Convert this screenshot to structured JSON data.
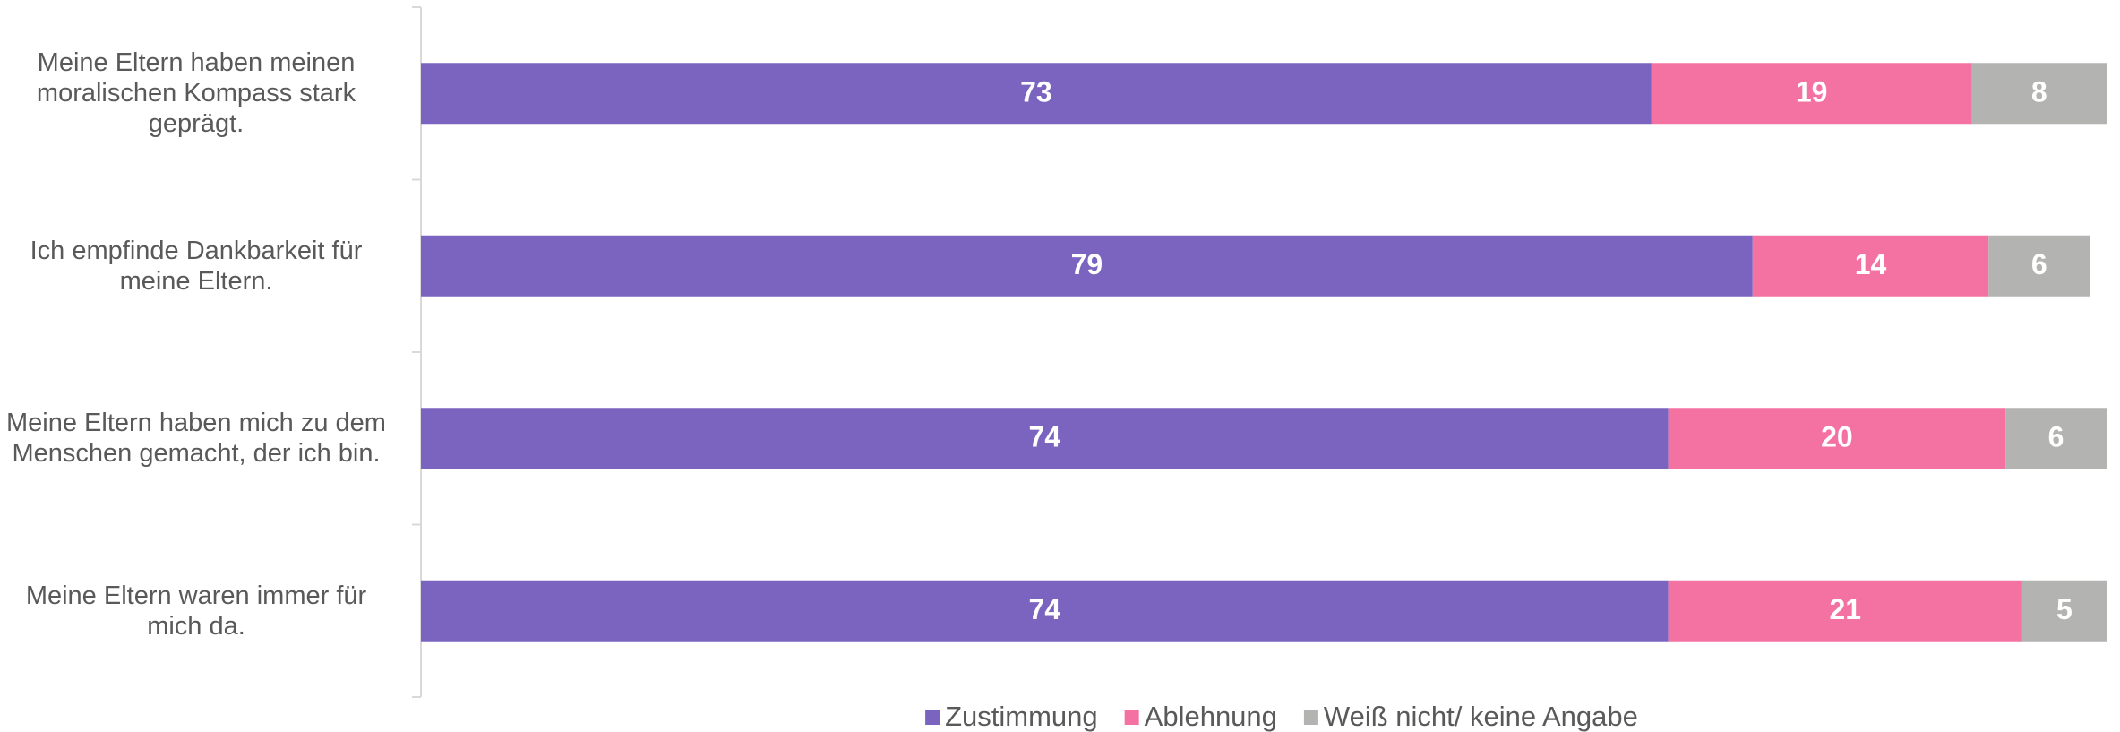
{
  "chart_data": {
    "type": "stacked-bar",
    "orientation": "horizontal",
    "categories": [
      "Meine Eltern haben meinen moralischen Kompass stark geprägt.",
      "Ich empfinde Dankbarkeit für meine Eltern.",
      "Meine Eltern haben mich zu dem Menschen gemacht, der ich bin.",
      "Meine Eltern waren immer für mich da."
    ],
    "series": [
      {
        "name": "Zustimmung",
        "color": "#7b64c0",
        "values": [
          73,
          79,
          74,
          74
        ]
      },
      {
        "name": "Ablehnung",
        "color": "#f372a2",
        "values": [
          19,
          14,
          20,
          21
        ]
      },
      {
        "name": "Weiß nicht/ keine Angabe",
        "color": "#b3b3b2",
        "values": [
          8,
          6,
          6,
          5
        ]
      }
    ],
    "xlim": [
      0,
      100
    ],
    "legend": "bottom"
  }
}
